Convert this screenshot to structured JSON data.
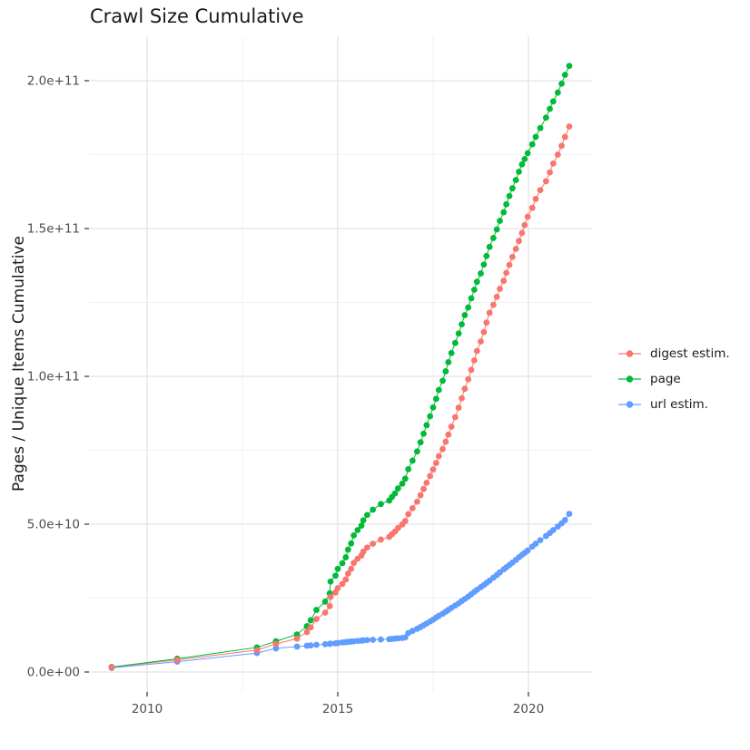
{
  "title": "Crawl Size Cumulative",
  "axes": {
    "y_label": "Pages / Unique Items Cumulative",
    "y_tick_labels": [
      "0.0e+00",
      "5.0e+10",
      "1.0e+11",
      "1.5e+11",
      "2.0e+11"
    ],
    "y_tick_values_e9": [
      0,
      50,
      100,
      150,
      200
    ],
    "y_minor_values_e9": [
      25,
      75,
      125,
      175
    ],
    "x_tick_labels": [
      "2010",
      "2015",
      "2020"
    ],
    "x_tick_values": [
      2010,
      2015,
      2020
    ],
    "x_minor_values": [
      2012.5,
      2017.5
    ]
  },
  "legend": {
    "items": [
      {
        "label": "digest estim.",
        "color": "#F8766D"
      },
      {
        "label": "page",
        "color": "#00BA38"
      },
      {
        "label": "url estim.",
        "color": "#619CFF"
      }
    ]
  },
  "colors": {
    "grid_major": "#E3E3E3",
    "grid_minor": "#F1F1F1",
    "tick_mark": "#333333",
    "tick_label": "#4d4d4d",
    "background": "#ffffff"
  },
  "chart_data": {
    "type": "scatter",
    "title": "Crawl Size Cumulative",
    "xlabel": "",
    "ylabel": "Pages / Unique Items Cumulative",
    "xlim": [
      2008.5,
      2021.7
    ],
    "ylim": [
      0,
      215000000000
    ],
    "grid": true,
    "legend_position": "right",
    "values_unit": "billions (1e9)",
    "x": [
      2009.07,
      2010.79,
      2012.88,
      2013.38,
      2013.93,
      2014.19,
      2014.29,
      2014.44,
      2014.67,
      2014.79,
      2014.81,
      2014.94,
      2015.0,
      2015.12,
      2015.21,
      2015.27,
      2015.35,
      2015.42,
      2015.52,
      2015.62,
      2015.67,
      2015.77,
      2015.92,
      2016.13,
      2016.35,
      2016.42,
      2016.5,
      2016.58,
      2016.69,
      2016.77,
      2016.85,
      2016.96,
      2017.08,
      2017.17,
      2017.25,
      2017.33,
      2017.42,
      2017.5,
      2017.58,
      2017.65,
      2017.75,
      2017.83,
      2017.9,
      2017.98,
      2018.08,
      2018.17,
      2018.25,
      2018.33,
      2018.42,
      2018.5,
      2018.58,
      2018.65,
      2018.75,
      2018.83,
      2018.9,
      2018.98,
      2019.08,
      2019.17,
      2019.25,
      2019.35,
      2019.42,
      2019.5,
      2019.58,
      2019.67,
      2019.75,
      2019.83,
      2019.9,
      2019.98,
      2020.1,
      2020.19,
      2020.31,
      2020.46,
      2020.56,
      2020.65,
      2020.77,
      2020.87,
      2020.96,
      2021.07
    ],
    "series": [
      {
        "name": "digest estim.",
        "color": "#F8766D",
        "values_e9": [
          1.6,
          4.1,
          7.4,
          9.5,
          11.3,
          13.5,
          15.1,
          17.9,
          20.1,
          22.3,
          25.4,
          26.9,
          28.4,
          29.8,
          31.3,
          33.3,
          34.9,
          36.9,
          38.3,
          39.4,
          40.7,
          42.1,
          43.4,
          44.8,
          45.7,
          46.6,
          47.5,
          48.7,
          49.9,
          51.1,
          53.4,
          55.4,
          57.6,
          59.8,
          61.9,
          64.0,
          66.3,
          68.5,
          70.7,
          73.0,
          75.4,
          77.9,
          80.3,
          83.0,
          86.2,
          89.4,
          92.6,
          95.8,
          99.0,
          102.2,
          105.4,
          108.6,
          111.8,
          115.0,
          118.2,
          121.5,
          124.2,
          126.9,
          129.6,
          132.3,
          135.0,
          137.7,
          140.4,
          143.1,
          145.8,
          148.5,
          151.2,
          154.0,
          157.0,
          160.0,
          163.0,
          166.0,
          169.0,
          172.0,
          175.0,
          178.0,
          181.0,
          184.5
        ]
      },
      {
        "name": "page",
        "color": "#00BA38",
        "values_e9": [
          1.7,
          4.5,
          8.3,
          10.4,
          12.7,
          15.5,
          17.5,
          21.0,
          23.8,
          26.6,
          30.6,
          32.6,
          34.9,
          36.8,
          38.8,
          41.4,
          43.5,
          46.2,
          48.0,
          49.5,
          51.3,
          53.1,
          54.9,
          56.8,
          58.0,
          59.2,
          60.4,
          62.1,
          63.7,
          65.4,
          68.6,
          71.5,
          74.6,
          77.7,
          80.6,
          83.5,
          86.5,
          89.5,
          92.4,
          95.4,
          98.5,
          101.7,
          104.8,
          107.9,
          111.3,
          114.5,
          117.6,
          120.7,
          123.3,
          126.4,
          129.3,
          132.0,
          134.8,
          137.8,
          140.7,
          143.8,
          146.8,
          149.7,
          152.6,
          155.5,
          158.2,
          161.0,
          163.6,
          166.4,
          169.2,
          171.7,
          173.5,
          175.5,
          178.5,
          181.0,
          184.0,
          187.5,
          190.5,
          193.0,
          196.0,
          199.0,
          202.0,
          205.0
        ]
      },
      {
        "name": "url estim.",
        "color": "#619CFF",
        "values_e9": [
          1.4,
          3.5,
          6.4,
          8.0,
          8.6,
          8.9,
          9.0,
          9.2,
          9.4,
          9.5,
          9.6,
          9.7,
          9.8,
          10.0,
          10.1,
          10.2,
          10.3,
          10.4,
          10.5,
          10.6,
          10.7,
          10.8,
          10.9,
          11.0,
          11.1,
          11.2,
          11.3,
          11.4,
          11.5,
          11.7,
          13.2,
          13.9,
          14.6,
          15.2,
          15.8,
          16.4,
          17.1,
          17.7,
          18.4,
          19.0,
          19.7,
          20.4,
          21.0,
          21.7,
          22.5,
          23.2,
          24.0,
          24.7,
          25.5,
          26.3,
          27.1,
          27.8,
          28.7,
          29.4,
          30.1,
          30.9,
          31.9,
          32.8,
          33.7,
          34.7,
          35.4,
          36.2,
          37.0,
          37.9,
          38.8,
          39.6,
          40.3,
          41.1,
          42.4,
          43.4,
          44.6,
          46.0,
          47.0,
          48.0,
          49.2,
          50.3,
          51.4,
          53.5
        ]
      }
    ]
  }
}
